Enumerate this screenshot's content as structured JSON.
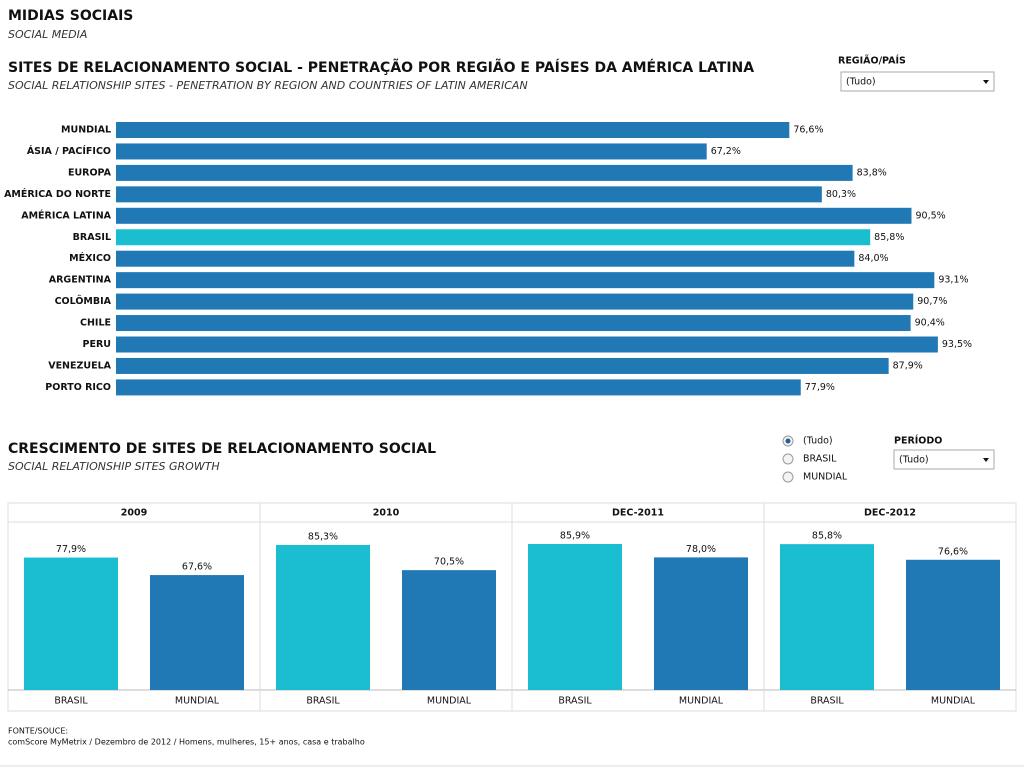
{
  "header": {
    "title": "MIDIAS SOCIAIS",
    "subtitle": "SOCIAL MEDIA"
  },
  "chart_data": [
    {
      "type": "hbar",
      "title": "SITES DE RELACIONAMENTO SOCIAL - PENETRAÇÃO POR REGIÃO E PAÍSES DA AMÉRICA LATINA",
      "subtitle": "SOCIAL RELATIONSHIP SITES - PENETRATION BY REGION AND COUNTRIES OF LATIN AMERICAN",
      "categories": [
        "MUNDIAL",
        "ÁSIA / PACÍFICO",
        "EUROPA",
        "AMÉRICA DO NORTE",
        "AMÉRICA LATINA",
        "BRASIL",
        "MÉXICO",
        "ARGENTINA",
        "COLÔMBIA",
        "CHILE",
        "PERU",
        "VENEZUELA",
        "PORTO RICO"
      ],
      "values": [
        76.6,
        67.2,
        83.8,
        80.3,
        90.5,
        85.8,
        84.0,
        93.1,
        90.7,
        90.4,
        93.5,
        87.9,
        77.9
      ],
      "value_labels": [
        "76,6%",
        "67,2%",
        "83,8%",
        "80,3%",
        "90,5%",
        "85,8%",
        "84,0%",
        "93,1%",
        "90,7%",
        "90,4%",
        "93,5%",
        "87,9%",
        "77,9%"
      ],
      "colors": [
        "#2078b4",
        "#2078b4",
        "#2078b4",
        "#2078b4",
        "#2078b4",
        "#1bbdd0",
        "#2078b4",
        "#2078b4",
        "#2078b4",
        "#2078b4",
        "#2078b4",
        "#2078b4",
        "#2078b4"
      ],
      "xlim": [
        0,
        100
      ]
    },
    {
      "type": "panel_bar",
      "title": "CRESCIMENTO DE SITES DE RELACIONAMENTO SOCIAL",
      "subtitle": "SOCIAL RELATIONSHIP SITES GROWTH",
      "categories": [
        "2009",
        "2010",
        "DEC-2011",
        "DEC-2012"
      ],
      "series": [
        {
          "name": "BRASIL",
          "color": "#1bbdd0",
          "values": [
            77.9,
            85.3,
            85.9,
            85.8
          ],
          "value_labels": [
            "77,9%",
            "85,3%",
            "85,9%",
            "85,8%"
          ]
        },
        {
          "name": "MUNDIAL",
          "color": "#2078b4",
          "values": [
            67.6,
            70.5,
            78.0,
            76.6
          ],
          "value_labels": [
            "67,6%",
            "70,5%",
            "78,0%",
            "76,6%"
          ]
        }
      ],
      "ylim": [
        0,
        100
      ]
    }
  ],
  "filters": {
    "region": {
      "label": "REGIÃO/PAÍS",
      "value": "(Tudo)"
    },
    "radio": {
      "options": [
        "(Tudo)",
        "BRASIL",
        "MUNDIAL"
      ],
      "selected": 0
    },
    "period": {
      "label": "PERÍODO",
      "value": "(Tudo)"
    }
  },
  "footer": {
    "source_label": "FONTE/SOUCE:",
    "source": "comScore MyMetrix / Dezembro de 2012 / Homens, mulheres, 15+ anos, casa e trabalho"
  }
}
